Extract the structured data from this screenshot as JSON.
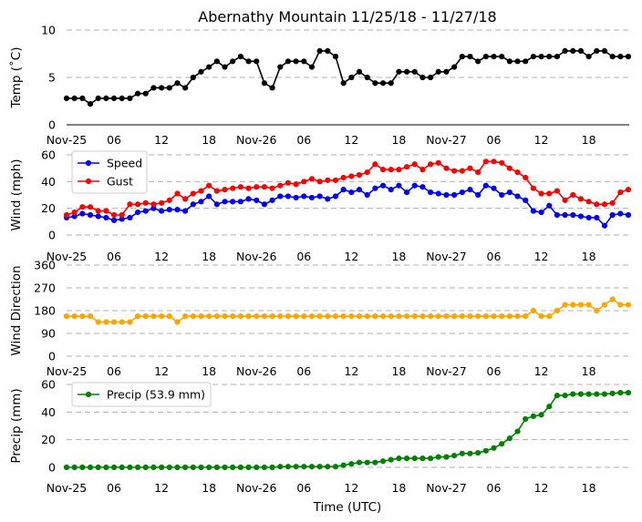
{
  "title": "Abernathy Mountain 11/25/18 - 11/27/18",
  "xlabel": "Time (UTC)",
  "time_ticks": [
    "Nov-25",
    "06",
    "12",
    "18",
    "Nov-26",
    "06",
    "12",
    "18",
    "Nov-27",
    "06",
    "12",
    "18"
  ],
  "chart_data": [
    {
      "type": "line",
      "name": "temperature",
      "ylabel": "Temp (˚C)",
      "ylim": [
        0,
        10
      ],
      "yticks": [
        0,
        5,
        10
      ],
      "grid": true,
      "legend": null,
      "x_unit": "hours since 11/25 00 UTC",
      "series": [
        {
          "name": "Temp",
          "color": "#000000",
          "x": [
            0,
            1,
            2,
            3,
            4,
            5,
            6,
            7,
            8,
            9,
            10,
            11,
            12,
            13,
            14,
            15,
            16,
            17,
            18,
            19,
            20,
            21,
            22,
            23,
            24,
            25,
            26,
            27,
            28,
            29,
            30,
            31,
            32,
            33,
            34,
            35,
            36,
            37,
            38,
            39,
            40,
            41,
            42,
            43,
            44,
            45,
            46,
            47,
            48,
            49,
            50,
            51,
            52,
            53,
            54,
            55,
            56,
            57,
            58,
            59,
            60,
            61,
            62,
            63,
            64,
            65,
            66,
            67,
            68,
            69,
            70,
            71
          ],
          "values": [
            2.8,
            2.8,
            2.8,
            2.2,
            2.8,
            2.8,
            2.8,
            2.8,
            2.8,
            3.3,
            3.3,
            3.9,
            3.9,
            3.9,
            4.4,
            3.9,
            5.0,
            5.6,
            6.1,
            6.7,
            6.1,
            6.7,
            7.2,
            6.7,
            6.7,
            4.4,
            3.9,
            6.1,
            6.7,
            6.7,
            6.7,
            6.1,
            7.8,
            7.8,
            7.2,
            4.4,
            5.0,
            5.6,
            5.0,
            4.4,
            4.4,
            4.4,
            5.6,
            5.6,
            5.6,
            5.0,
            5.0,
            5.6,
            5.6,
            6.1,
            7.2,
            7.2,
            6.7,
            7.2,
            7.2,
            7.2,
            6.7,
            6.7,
            6.7,
            7.2,
            7.2,
            7.2,
            7.2,
            7.8,
            7.8,
            7.8,
            7.2,
            7.8,
            7.8,
            7.2,
            7.2,
            7.2
          ]
        }
      ]
    },
    {
      "type": "line",
      "name": "wind",
      "ylabel": "Wind (mph)",
      "ylim": [
        0,
        60
      ],
      "yticks": [
        0,
        20,
        40,
        60
      ],
      "grid": true,
      "legend": "top-left",
      "x_unit": "hours since 11/25 00 UTC",
      "series": [
        {
          "name": "Speed",
          "color": "#0000ff",
          "x": [
            0,
            1,
            2,
            3,
            4,
            5,
            6,
            7,
            8,
            9,
            10,
            11,
            12,
            13,
            14,
            15,
            16,
            17,
            18,
            19,
            20,
            21,
            22,
            23,
            24,
            25,
            26,
            27,
            28,
            29,
            30,
            31,
            32,
            33,
            34,
            35,
            36,
            37,
            38,
            39,
            40,
            41,
            42,
            43,
            44,
            45,
            46,
            47,
            48,
            49,
            50,
            51,
            52,
            53,
            54,
            55,
            56,
            57,
            58,
            59,
            60,
            61,
            62,
            63,
            64,
            65,
            66,
            67,
            68,
            69,
            70,
            71
          ],
          "values": [
            13,
            14,
            16,
            15,
            14,
            13,
            11,
            12,
            13,
            17,
            18,
            20,
            18,
            19,
            19,
            18,
            23,
            25,
            29,
            23,
            25,
            25,
            25,
            27,
            26,
            23,
            26,
            29,
            29,
            28,
            29,
            28,
            29,
            27,
            29,
            34,
            32,
            34,
            30,
            35,
            37,
            34,
            37,
            32,
            37,
            36,
            32,
            31,
            30,
            30,
            32,
            34,
            30,
            37,
            35,
            30,
            32,
            29,
            26,
            18,
            17,
            22,
            15,
            15,
            15,
            14,
            13,
            13,
            7,
            15,
            16,
            15
          ]
        },
        {
          "name": "Gust",
          "color": "#ff0000",
          "x": [
            0,
            1,
            2,
            3,
            4,
            5,
            6,
            7,
            8,
            9,
            10,
            11,
            12,
            13,
            14,
            15,
            16,
            17,
            18,
            19,
            20,
            21,
            22,
            23,
            24,
            25,
            26,
            27,
            28,
            29,
            30,
            31,
            32,
            33,
            34,
            35,
            36,
            37,
            38,
            39,
            40,
            41,
            42,
            43,
            44,
            45,
            46,
            47,
            48,
            49,
            50,
            51,
            52,
            53,
            54,
            55,
            56,
            57,
            58,
            59,
            60,
            61,
            62,
            63,
            64,
            65,
            66,
            67,
            68,
            69,
            70,
            71
          ],
          "values": [
            15,
            17,
            21,
            21,
            18,
            18,
            15,
            15,
            23,
            23,
            24,
            23,
            24,
            26,
            31,
            27,
            31,
            33,
            37,
            33,
            34,
            35,
            36,
            35,
            36,
            36,
            35,
            37,
            39,
            38,
            40,
            42,
            40,
            41,
            41,
            43,
            44,
            45,
            47,
            53,
            49,
            49,
            49,
            51,
            53,
            49,
            53,
            54,
            50,
            48,
            48,
            50,
            47,
            55,
            55,
            54,
            50,
            47,
            43,
            35,
            31,
            31,
            33,
            26,
            30,
            27,
            25,
            23,
            23,
            24,
            32,
            34
          ]
        }
      ]
    },
    {
      "type": "line",
      "name": "wind_direction",
      "ylabel": "Wind Direction",
      "ylim": [
        0,
        360
      ],
      "yticks": [
        0,
        90,
        180,
        270,
        360
      ],
      "grid": true,
      "legend": null,
      "x_unit": "hours since 11/25 00 UTC",
      "series": [
        {
          "name": "Direction",
          "color": "#ffa500",
          "x": [
            0,
            1,
            2,
            3,
            4,
            5,
            6,
            7,
            8,
            9,
            10,
            11,
            12,
            13,
            14,
            15,
            16,
            17,
            18,
            19,
            20,
            21,
            22,
            23,
            24,
            25,
            26,
            27,
            28,
            29,
            30,
            31,
            32,
            33,
            34,
            35,
            36,
            37,
            38,
            39,
            40,
            41,
            42,
            43,
            44,
            45,
            46,
            47,
            48,
            49,
            50,
            51,
            52,
            53,
            54,
            55,
            56,
            57,
            58,
            59,
            60,
            61,
            62,
            63,
            64,
            65,
            66,
            67,
            68,
            69,
            70,
            71
          ],
          "values": [
            158,
            158,
            158,
            158,
            135,
            135,
            135,
            135,
            135,
            158,
            158,
            158,
            158,
            158,
            135,
            158,
            158,
            158,
            158,
            158,
            158,
            158,
            158,
            158,
            158,
            158,
            158,
            158,
            158,
            158,
            158,
            158,
            158,
            158,
            158,
            158,
            158,
            158,
            158,
            158,
            158,
            158,
            158,
            158,
            158,
            158,
            158,
            158,
            158,
            158,
            158,
            158,
            158,
            158,
            158,
            158,
            158,
            158,
            158,
            180,
            158,
            158,
            180,
            203,
            203,
            203,
            203,
            180,
            203,
            225,
            203,
            203
          ]
        }
      ]
    },
    {
      "type": "line",
      "name": "precipitation",
      "ylabel": "Precip (mm)",
      "ylim": [
        0,
        60
      ],
      "yticks": [
        0,
        20,
        40,
        60
      ],
      "grid": true,
      "legend": "top-left",
      "x_unit": "hours since 11/25 00 UTC",
      "series": [
        {
          "name": "Precip (53.9 mm)",
          "color": "#008000",
          "x": [
            0,
            1,
            2,
            3,
            4,
            5,
            6,
            7,
            8,
            9,
            10,
            11,
            12,
            13,
            14,
            15,
            16,
            17,
            18,
            19,
            20,
            21,
            22,
            23,
            24,
            25,
            26,
            27,
            28,
            29,
            30,
            31,
            32,
            33,
            34,
            35,
            36,
            37,
            38,
            39,
            40,
            41,
            42,
            43,
            44,
            45,
            46,
            47,
            48,
            49,
            50,
            51,
            52,
            53,
            54,
            55,
            56,
            57,
            58,
            59,
            60,
            61,
            62,
            63,
            64,
            65,
            66,
            67,
            68,
            69,
            70,
            71
          ],
          "values": [
            0,
            0,
            0,
            0,
            0,
            0,
            0,
            0,
            0,
            0,
            0,
            0,
            0,
            0,
            0,
            0,
            0,
            0,
            0,
            0,
            0,
            0,
            0,
            0,
            0,
            0,
            0,
            0.5,
            0.5,
            0.5,
            0.5,
            0.5,
            0.5,
            0.5,
            0.5,
            1.5,
            2.5,
            3.5,
            3.5,
            3.5,
            4.5,
            5.5,
            6.5,
            6.5,
            6.5,
            6.5,
            6.5,
            7.5,
            7.5,
            8.5,
            10,
            10,
            10.5,
            12,
            14,
            17,
            21,
            26,
            35,
            37,
            38,
            44,
            52,
            52,
            53,
            53,
            53,
            53,
            53,
            53.5,
            54,
            54
          ]
        }
      ]
    }
  ]
}
